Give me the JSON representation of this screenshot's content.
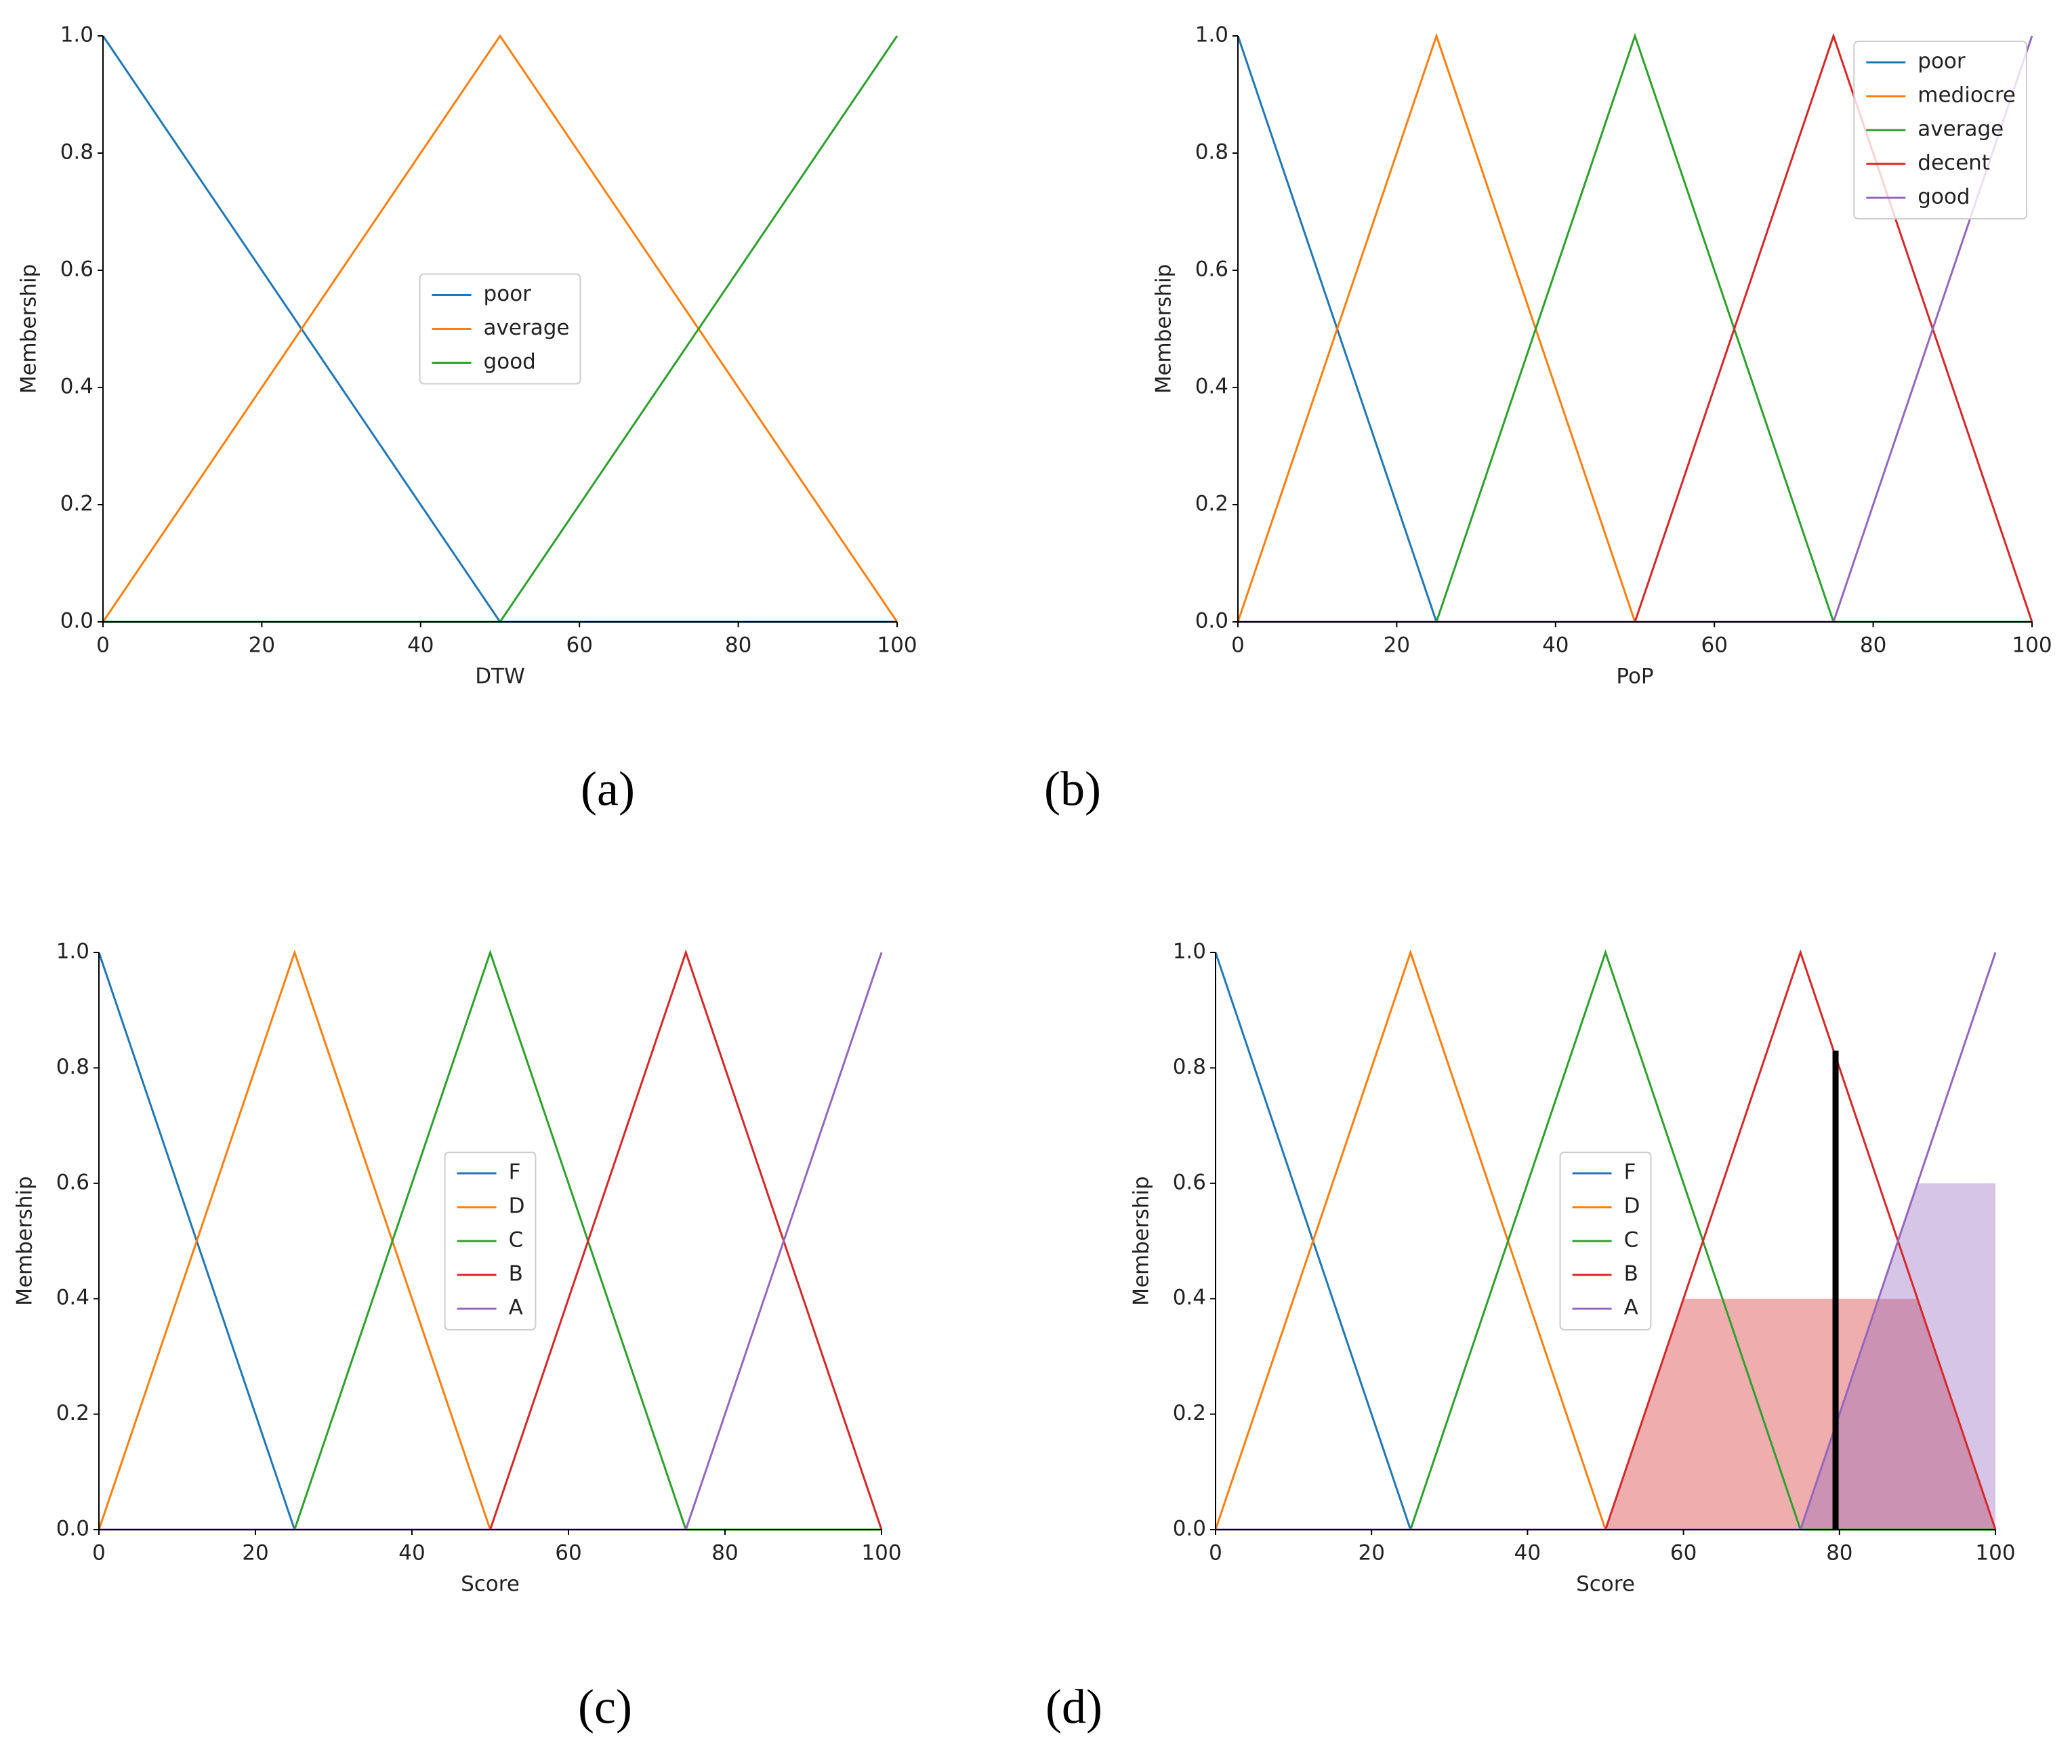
{
  "chart_data": [
    {
      "type": "line",
      "caption": "(a)",
      "xlabel": "DTW",
      "ylabel": "Membership",
      "xlim": [
        0,
        100
      ],
      "ylim": [
        0,
        1
      ],
      "xticks": [
        0,
        20,
        40,
        60,
        80,
        100
      ],
      "yticks": [
        {
          "value": 0,
          "label": "0.0"
        },
        {
          "value": 0.2,
          "label": "0.2"
        },
        {
          "value": 0.4,
          "label": "0.4"
        },
        {
          "value": 0.6,
          "label": "0.6"
        },
        {
          "value": 0.8,
          "label": "0.8"
        },
        {
          "value": 1,
          "label": "1.0"
        }
      ],
      "legend": "center",
      "x": [
        0,
        50,
        100
      ],
      "series": [
        {
          "name": "poor",
          "color": "#1f77b4",
          "values": [
            1,
            0,
            0
          ]
        },
        {
          "name": "average",
          "color": "#ff7f0e",
          "values": [
            0,
            1,
            0
          ]
        },
        {
          "name": "good",
          "color": "#2ca02c",
          "values": [
            0,
            0,
            1
          ]
        }
      ]
    },
    {
      "type": "line",
      "caption": "(b)",
      "xlabel": "PoP",
      "ylabel": "Membership",
      "xlim": [
        0,
        100
      ],
      "ylim": [
        0,
        1
      ],
      "xticks": [
        0,
        20,
        40,
        60,
        80,
        100
      ],
      "yticks": [
        {
          "value": 0,
          "label": "0.0"
        },
        {
          "value": 0.2,
          "label": "0.2"
        },
        {
          "value": 0.4,
          "label": "0.4"
        },
        {
          "value": 0.6,
          "label": "0.6"
        },
        {
          "value": 0.8,
          "label": "0.8"
        },
        {
          "value": 1,
          "label": "1.0"
        }
      ],
      "legend": "upper right",
      "x": [
        0,
        25,
        50,
        75,
        100
      ],
      "series": [
        {
          "name": "poor",
          "color": "#1f77b4",
          "values": [
            1,
            0,
            0,
            0,
            0
          ]
        },
        {
          "name": "mediocre",
          "color": "#ff7f0e",
          "values": [
            0,
            1,
            0,
            0,
            0
          ]
        },
        {
          "name": "average",
          "color": "#2ca02c",
          "values": [
            0,
            0,
            1,
            0,
            0
          ]
        },
        {
          "name": "decent",
          "color": "#d62728",
          "values": [
            0,
            0,
            0,
            1,
            0
          ]
        },
        {
          "name": "good",
          "color": "#9467bd",
          "values": [
            0,
            0,
            0,
            0,
            1
          ]
        }
      ]
    },
    {
      "type": "line",
      "caption": "(c)",
      "xlabel": "Score",
      "ylabel": "Membership",
      "xlim": [
        0,
        100
      ],
      "ylim": [
        0,
        1
      ],
      "xticks": [
        0,
        20,
        40,
        60,
        80,
        100
      ],
      "yticks": [
        {
          "value": 0,
          "label": "0.0"
        },
        {
          "value": 0.2,
          "label": "0.2"
        },
        {
          "value": 0.4,
          "label": "0.4"
        },
        {
          "value": 0.6,
          "label": "0.6"
        },
        {
          "value": 0.8,
          "label": "0.8"
        },
        {
          "value": 1,
          "label": "1.0"
        }
      ],
      "legend": "center",
      "x": [
        0,
        25,
        50,
        75,
        100
      ],
      "series": [
        {
          "name": "F",
          "color": "#1f77b4",
          "values": [
            1,
            0,
            0,
            0,
            0
          ]
        },
        {
          "name": "D",
          "color": "#ff7f0e",
          "values": [
            0,
            1,
            0,
            0,
            0
          ]
        },
        {
          "name": "C",
          "color": "#2ca02c",
          "values": [
            0,
            0,
            1,
            0,
            0
          ]
        },
        {
          "name": "B",
          "color": "#d62728",
          "values": [
            0,
            0,
            0,
            1,
            0
          ]
        },
        {
          "name": "A",
          "color": "#9467bd",
          "values": [
            0,
            0,
            0,
            0,
            1
          ]
        }
      ]
    },
    {
      "type": "line",
      "caption": "(d)",
      "xlabel": "Score",
      "ylabel": "Membership",
      "xlim": [
        0,
        100
      ],
      "ylim": [
        0,
        1
      ],
      "xticks": [
        0,
        20,
        40,
        60,
        80,
        100
      ],
      "yticks": [
        {
          "value": 0,
          "label": "0.0"
        },
        {
          "value": 0.2,
          "label": "0.2"
        },
        {
          "value": 0.4,
          "label": "0.4"
        },
        {
          "value": 0.6,
          "label": "0.6"
        },
        {
          "value": 0.8,
          "label": "0.8"
        },
        {
          "value": 1,
          "label": "1.0"
        }
      ],
      "legend": "center",
      "x": [
        0,
        25,
        50,
        75,
        100
      ],
      "series": [
        {
          "name": "F",
          "color": "#1f77b4",
          "values": [
            1,
            0,
            0,
            0,
            0
          ]
        },
        {
          "name": "D",
          "color": "#ff7f0e",
          "values": [
            0,
            1,
            0,
            0,
            0
          ]
        },
        {
          "name": "C",
          "color": "#2ca02c",
          "values": [
            0,
            0,
            1,
            0,
            0
          ]
        },
        {
          "name": "B",
          "color": "#d62728",
          "values": [
            0,
            0,
            0,
            1,
            0
          ]
        },
        {
          "name": "A",
          "color": "#9467bd",
          "values": [
            0,
            0,
            0,
            0,
            1
          ]
        }
      ],
      "areas": [
        {
          "color": "#d62728",
          "x": [
            50,
            60,
            90,
            100
          ],
          "values": [
            0,
            0.4,
            0.4,
            0
          ]
        },
        {
          "color": "#9467bd",
          "x": [
            75,
            90,
            100,
            100
          ],
          "values": [
            0,
            0.6,
            0.6,
            0
          ]
        }
      ],
      "vline": {
        "x": 79.5,
        "y": 0.83,
        "color": "#000000"
      }
    }
  ]
}
